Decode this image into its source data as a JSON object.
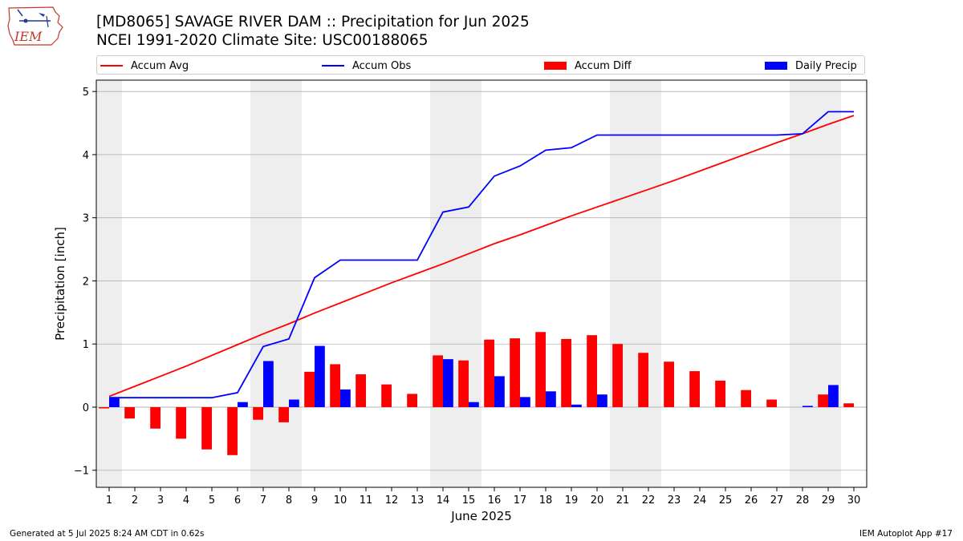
{
  "header": {
    "title_line1": "[MD8065] SAVAGE RIVER DAM :: Precipitation for Jun 2025",
    "title_line2": "NCEI 1991-2020 Climate Site: USC00188065"
  },
  "logo": {
    "text": "IEM",
    "icon": "iowa-state-outline-logo"
  },
  "legend": {
    "items": [
      {
        "label": "Accum Avg",
        "kind": "line",
        "color": "#ff0000"
      },
      {
        "label": "Accum Obs",
        "kind": "line",
        "color": "#0000ff"
      },
      {
        "label": "Accum Diff",
        "kind": "bar",
        "color": "#ff0000"
      },
      {
        "label": "Daily Precip",
        "kind": "bar",
        "color": "#0000ff"
      }
    ]
  },
  "footer": {
    "left": "Generated at 5 Jul 2025 8:24 AM CDT in 0.62s",
    "right": "IEM Autoplot App #17"
  },
  "chart_data": {
    "type": "bar",
    "xlabel": "June 2025",
    "ylabel": "Precipitation [inch]",
    "x": [
      1,
      2,
      3,
      4,
      5,
      6,
      7,
      8,
      9,
      10,
      11,
      12,
      13,
      14,
      15,
      16,
      17,
      18,
      19,
      20,
      21,
      22,
      23,
      24,
      25,
      26,
      27,
      28,
      29,
      30
    ],
    "xlim": [
      0.5,
      30.5
    ],
    "ylim": [
      -1.27,
      5.18
    ],
    "yticks": [
      -1,
      0,
      1,
      2,
      3,
      4,
      5
    ],
    "grid": "horizontal",
    "weekend_shading": [
      [
        0.5,
        1.5
      ],
      [
        6.5,
        8.5
      ],
      [
        13.5,
        15.5
      ],
      [
        20.5,
        22.5
      ],
      [
        27.5,
        29.5
      ]
    ],
    "colors": {
      "avg": "#ff0000",
      "obs": "#0000ff",
      "diff": "#ff0000",
      "daily": "#0000ff",
      "shade": "#eeeeee",
      "grid": "#b0b0b0"
    },
    "series": [
      {
        "name": "Accum Avg",
        "kind": "line",
        "values": [
          0.17,
          0.33,
          0.49,
          0.65,
          0.82,
          0.99,
          1.16,
          1.32,
          1.49,
          1.65,
          1.81,
          1.97,
          2.12,
          2.27,
          2.43,
          2.59,
          2.73,
          2.88,
          3.03,
          3.17,
          3.31,
          3.45,
          3.59,
          3.74,
          3.89,
          4.04,
          4.19,
          4.33,
          4.48,
          4.62
        ]
      },
      {
        "name": "Accum Obs",
        "kind": "line",
        "values": [
          0.15,
          0.15,
          0.15,
          0.15,
          0.15,
          0.23,
          0.96,
          1.08,
          2.05,
          2.33,
          2.33,
          2.33,
          2.33,
          3.09,
          3.17,
          3.66,
          3.82,
          4.07,
          4.11,
          4.31,
          4.31,
          4.31,
          4.31,
          4.31,
          4.31,
          4.31,
          4.31,
          4.33,
          4.68,
          4.68
        ]
      },
      {
        "name": "Accum Diff",
        "kind": "bar",
        "values": [
          -0.02,
          -0.18,
          -0.34,
          -0.5,
          -0.67,
          -0.76,
          -0.2,
          -0.24,
          0.56,
          0.68,
          0.52,
          0.36,
          0.21,
          0.82,
          0.74,
          1.07,
          1.09,
          1.19,
          1.08,
          1.14,
          1.0,
          0.86,
          0.72,
          0.57,
          0.42,
          0.27,
          0.12,
          0.0,
          0.2,
          0.06
        ]
      },
      {
        "name": "Daily Precip",
        "kind": "bar",
        "values": [
          0.15,
          0.0,
          0.0,
          0.0,
          0.0,
          0.08,
          0.73,
          0.12,
          0.97,
          0.28,
          0.0,
          0.0,
          0.0,
          0.76,
          0.08,
          0.49,
          0.16,
          0.25,
          0.04,
          0.2,
          0.0,
          0.0,
          0.0,
          0.0,
          0.0,
          0.0,
          0.0,
          0.02,
          0.35,
          0.0
        ]
      }
    ]
  }
}
